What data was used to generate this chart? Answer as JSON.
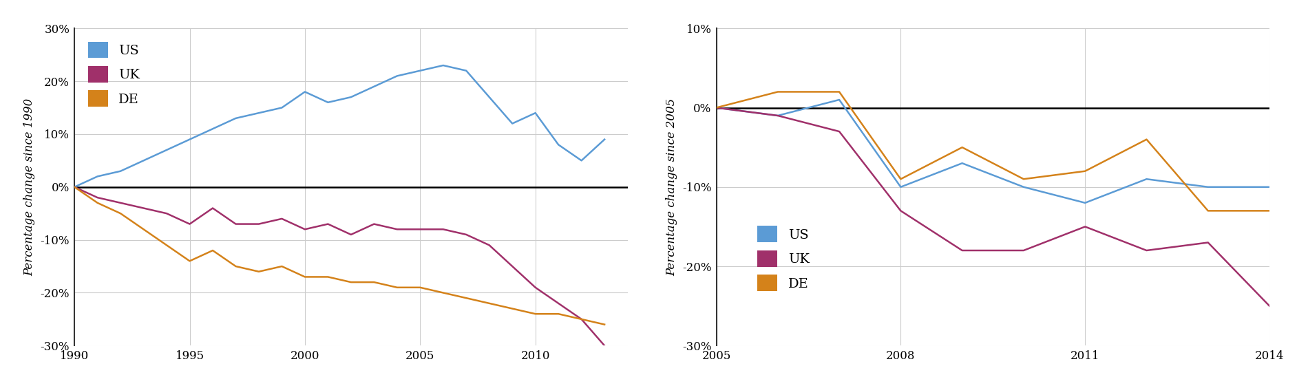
{
  "chart1": {
    "ylabel": "Percentage change since 1990",
    "xlim": [
      1990,
      2014
    ],
    "ylim": [
      -0.3,
      0.3
    ],
    "yticks": [
      -0.3,
      -0.2,
      -0.1,
      0.0,
      0.1,
      0.2,
      0.3
    ],
    "xticks": [
      1990,
      1995,
      2000,
      2005,
      2010
    ],
    "years": [
      1990,
      1991,
      1992,
      1993,
      1994,
      1995,
      1996,
      1997,
      1998,
      1999,
      2000,
      2001,
      2002,
      2003,
      2004,
      2005,
      2006,
      2007,
      2008,
      2009,
      2010,
      2011,
      2012,
      2013
    ],
    "US": [
      0.0,
      0.02,
      0.03,
      0.05,
      0.07,
      0.09,
      0.11,
      0.13,
      0.14,
      0.15,
      0.18,
      0.16,
      0.17,
      0.19,
      0.21,
      0.22,
      0.23,
      0.22,
      0.17,
      0.12,
      0.14,
      0.08,
      0.05,
      0.09
    ],
    "UK": [
      0.0,
      -0.02,
      -0.03,
      -0.04,
      -0.05,
      -0.07,
      -0.04,
      -0.07,
      -0.07,
      -0.06,
      -0.08,
      -0.07,
      -0.09,
      -0.07,
      -0.08,
      -0.08,
      -0.08,
      -0.09,
      -0.11,
      -0.15,
      -0.19,
      -0.22,
      -0.25,
      -0.3
    ],
    "DE": [
      0.0,
      -0.03,
      -0.05,
      -0.08,
      -0.11,
      -0.14,
      -0.12,
      -0.15,
      -0.16,
      -0.15,
      -0.17,
      -0.17,
      -0.18,
      -0.18,
      -0.19,
      -0.19,
      -0.2,
      -0.21,
      -0.22,
      -0.23,
      -0.24,
      -0.24,
      -0.25,
      -0.26
    ],
    "US_color": "#5b9bd5",
    "UK_color": "#a0306a",
    "DE_color": "#d4821a"
  },
  "chart2": {
    "ylabel": "Percentage change since 2005",
    "xlim": [
      2005,
      2014
    ],
    "ylim": [
      -0.3,
      0.1
    ],
    "yticks": [
      -0.3,
      -0.2,
      -0.1,
      0.0,
      0.1
    ],
    "xticks": [
      2005,
      2008,
      2011,
      2014
    ],
    "years": [
      2005,
      2006,
      2007,
      2008,
      2009,
      2010,
      2011,
      2012,
      2013,
      2014
    ],
    "US": [
      0.0,
      -0.01,
      0.01,
      -0.1,
      -0.07,
      -0.1,
      -0.12,
      -0.09,
      -0.1,
      -0.1
    ],
    "UK": [
      0.0,
      -0.01,
      -0.03,
      -0.13,
      -0.18,
      -0.18,
      -0.15,
      -0.18,
      -0.17,
      -0.25
    ],
    "DE": [
      0.0,
      0.02,
      0.02,
      -0.09,
      -0.05,
      -0.09,
      -0.08,
      -0.04,
      -0.13,
      -0.13
    ],
    "US_color": "#5b9bd5",
    "UK_color": "#a0306a",
    "DE_color": "#d4821a"
  },
  "plot_bg": "#ffffff",
  "fig_bg": "#ffffff",
  "grid_color": "#cccccc",
  "spine_color": "#333333",
  "legend_fontsize": 14,
  "axis_label_fontsize": 12,
  "tick_fontsize": 12,
  "line_width": 1.8
}
